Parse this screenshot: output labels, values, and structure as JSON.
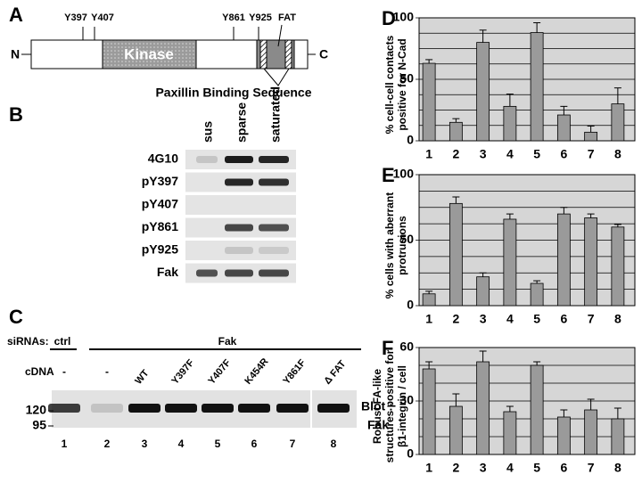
{
  "panel_a": {
    "label": "A",
    "n_term": "N",
    "c_term": "C",
    "kinase": "Kinase",
    "sites": [
      "Y397",
      "Y407",
      "Y861",
      "Y925"
    ],
    "fat": "FAT",
    "paxillin": "Paxillin Binding Sequence"
  },
  "panel_b": {
    "label": "B",
    "columns": [
      "sus",
      "sparse",
      "saturated"
    ],
    "rows": [
      "4G10",
      "pY397",
      "pY407",
      "pY861",
      "pY925",
      "Fak"
    ]
  },
  "panel_c": {
    "label": "C",
    "sirna_label": "siRNAs:",
    "sirna_groups": [
      "ctrl",
      "Fak"
    ],
    "cdna_label": "cDNA",
    "cdna": [
      "-",
      "-",
      "WT",
      "Y397F",
      "Y407F",
      "K454R",
      "Y861F",
      "Δ FAT"
    ],
    "markers": [
      "120",
      "95"
    ],
    "blot_label": "Blot :",
    "blot_target": "Fak",
    "lanes": [
      "1",
      "2",
      "3",
      "4",
      "5",
      "6",
      "7",
      "8"
    ]
  },
  "chart_data": [
    {
      "type": "bar",
      "panel": "D",
      "ylabel": [
        "% cell-cell contacts",
        "positive for N-Cad"
      ],
      "categories": [
        "1",
        "2",
        "3",
        "4",
        "5",
        "6",
        "7",
        "8"
      ],
      "values": [
        63,
        15,
        80,
        28,
        88,
        21,
        7,
        30
      ],
      "errors": [
        3,
        3,
        10,
        10,
        8,
        7,
        5,
        13
      ],
      "color": "#9a9a9a",
      "ylim": [
        0,
        100
      ],
      "yticks": [
        0,
        50,
        100
      ],
      "minor_yticks": [
        12.5,
        25,
        37.5,
        62.5,
        75,
        87.5
      ],
      "grid": true
    },
    {
      "type": "bar",
      "panel": "E",
      "ylabel": [
        "% cells with aberrant",
        "protrusions"
      ],
      "categories": [
        "1",
        "2",
        "3",
        "4",
        "5",
        "6",
        "7",
        "8"
      ],
      "values": [
        9,
        78,
        22,
        66,
        17,
        70,
        67,
        60
      ],
      "errors": [
        2,
        5,
        3,
        4,
        2,
        5,
        3,
        2
      ],
      "color": "#9a9a9a",
      "ylim": [
        0,
        100
      ],
      "yticks": [
        0,
        50,
        100
      ],
      "minor_yticks": [
        12.5,
        25,
        37.5,
        62.5,
        75,
        87.5
      ],
      "grid": true
    },
    {
      "type": "bar",
      "panel": "F",
      "ylabel": [
        "Robust FA-like",
        "structures positive for",
        "β1-integrin / cell"
      ],
      "categories": [
        "1",
        "2",
        "3",
        "4",
        "5",
        "6",
        "7",
        "8"
      ],
      "values": [
        48,
        27,
        52,
        24,
        50,
        21,
        25,
        20
      ],
      "errors": [
        4,
        7,
        6,
        3,
        2,
        4,
        6,
        6
      ],
      "color": "#9a9a9a",
      "ylim": [
        0,
        60
      ],
      "yticks": [
        0,
        30,
        60
      ],
      "minor_yticks": [
        10,
        20,
        40,
        50
      ],
      "grid": true
    }
  ]
}
